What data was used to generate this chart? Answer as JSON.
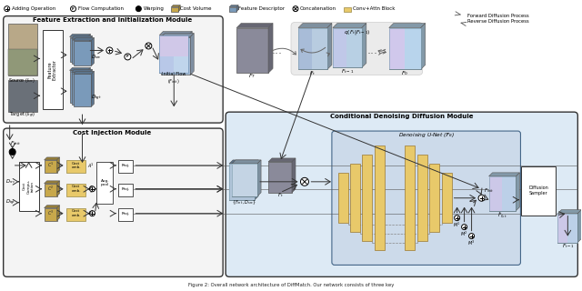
{
  "bg_color": "#ffffff",
  "caption": "Figure 2: Overall network architecture of DiffMatch. Our network consists of three key",
  "forward_label": "Forward Diffusion Process",
  "reverse_label": "Reverse Diffusion Process",
  "feature_module_title": "Feature Extraction and Initialization Module",
  "cost_module_title": "Cost Injection Module",
  "denoising_module_title": "Conditional Denoising Diffusion Module",
  "unet_title": "Denoising U-Net ($\\mathcal{F}_\\theta$)",
  "colors": {
    "yellow_block": "#c8a84b",
    "blue_block": "#7a9aba",
    "light_blue_block": "#a8c0d4",
    "gray_block": "#8a8a9a",
    "iridescent": "#b0cce0",
    "light_yellow_block": "#e8c96a",
    "module_bg": "#f4f4f4",
    "denoising_bg": "#ddeaf5",
    "unet_bg": "#ccdaea",
    "border": "#333333",
    "arrow": "#444444",
    "gray_img": "#909090",
    "src_img_top": "#b0a080",
    "src_img_bot": "#606870"
  }
}
